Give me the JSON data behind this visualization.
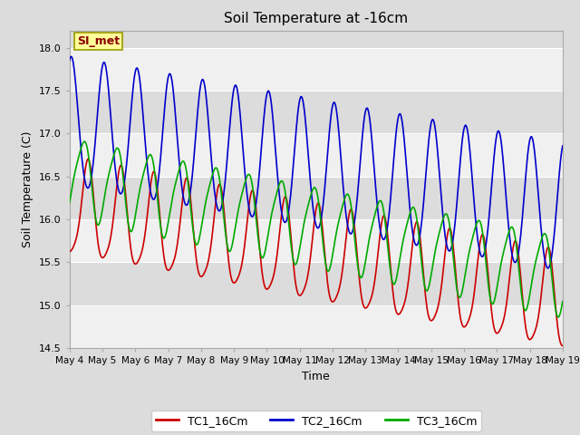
{
  "title": "Soil Temperature at -16cm",
  "xlabel": "Time",
  "ylabel": "Soil Temperature (C)",
  "ylim": [
    14.5,
    18.2
  ],
  "bg_color": "#dcdcdc",
  "plot_bg_color": "#dcdcdc",
  "white_band_color": "#f0f0f0",
  "annotation_text": "SI_met",
  "annotation_color": "#8b0000",
  "annotation_bg": "#ffff99",
  "annotation_border": "#999900",
  "x_tick_labels": [
    "May 4",
    "May 5",
    "May 6",
    "May 7",
    "May 8",
    "May 9",
    "May 10",
    "May 11",
    "May 12",
    "May 13",
    "May 14",
    "May 15",
    "May 16",
    "May 17",
    "May 18",
    "May 19"
  ],
  "yticks": [
    14.5,
    15.0,
    15.5,
    16.0,
    16.5,
    17.0,
    17.5,
    18.0
  ],
  "series": {
    "TC1_16Cm": {
      "color": "#cc0000",
      "lw": 1.2
    },
    "TC2_16Cm": {
      "color": "#0000cc",
      "lw": 1.2
    },
    "TC3_16Cm": {
      "color": "#00aa00",
      "lw": 1.2
    }
  },
  "n_days": 15,
  "pts_per_day": 48
}
